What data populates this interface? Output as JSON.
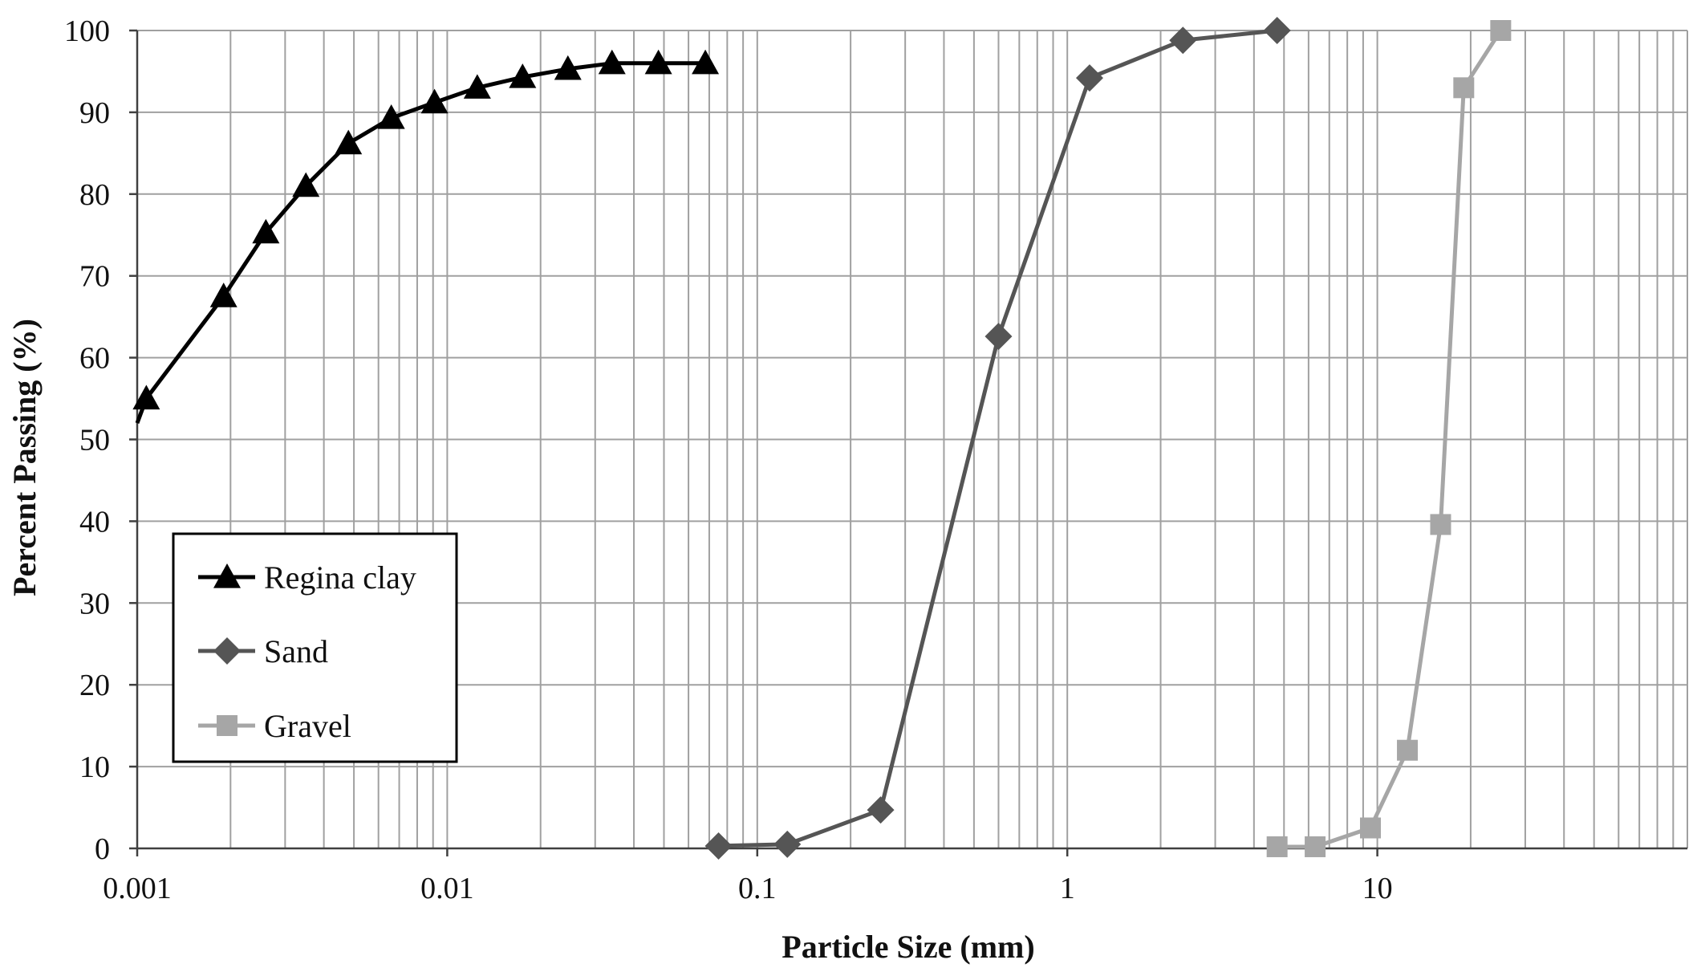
{
  "chart_data": {
    "type": "line",
    "xlabel": "Particle Size (mm)",
    "ylabel": "Percent Passing (%)",
    "x_scale": "log",
    "xlim": [
      0.001,
      100
    ],
    "ylim": [
      0,
      100
    ],
    "x_tick_labels": [
      "0.001",
      "0.01",
      "0.1",
      "1",
      "10"
    ],
    "x_tick_values": [
      0.001,
      0.01,
      0.1,
      1,
      10
    ],
    "y_ticks": [
      0,
      10,
      20,
      30,
      40,
      50,
      60,
      70,
      80,
      90,
      100
    ],
    "y_tick_labels": [
      "0",
      "10",
      "20",
      "30",
      "40",
      "50",
      "60",
      "70",
      "80",
      "90",
      "100"
    ],
    "grid": true,
    "legend_position": "lower-left",
    "series": [
      {
        "name": "Regina clay",
        "marker": "triangle",
        "color": "#000000",
        "points": [
          [
            0.00107,
            55
          ],
          [
            0.0019,
            67.5
          ],
          [
            0.0026,
            75.3
          ],
          [
            0.0035,
            81
          ],
          [
            0.0048,
            86.2
          ],
          [
            0.0066,
            89.3
          ],
          [
            0.0091,
            91.2
          ],
          [
            0.0125,
            93
          ],
          [
            0.0175,
            94.3
          ],
          [
            0.0245,
            95.3
          ],
          [
            0.034,
            96
          ],
          [
            0.048,
            96
          ],
          [
            0.068,
            96
          ]
        ],
        "line_start": [
          0.001,
          52
        ]
      },
      {
        "name": "Sand",
        "marker": "diamond",
        "color": "#555555",
        "points": [
          [
            0.075,
            0.3
          ],
          [
            0.125,
            0.5
          ],
          [
            0.25,
            4.7
          ],
          [
            0.6,
            62.6
          ],
          [
            1.18,
            94.2
          ],
          [
            2.36,
            98.8
          ],
          [
            4.75,
            100
          ]
        ]
      },
      {
        "name": "Gravel",
        "marker": "square",
        "color": "#a6a6a6",
        "points": [
          [
            4.75,
            0.2
          ],
          [
            6.3,
            0.2
          ],
          [
            9.5,
            2.5
          ],
          [
            12.5,
            12
          ],
          [
            16,
            39.6
          ],
          [
            19,
            93
          ],
          [
            25,
            100
          ]
        ]
      }
    ]
  }
}
